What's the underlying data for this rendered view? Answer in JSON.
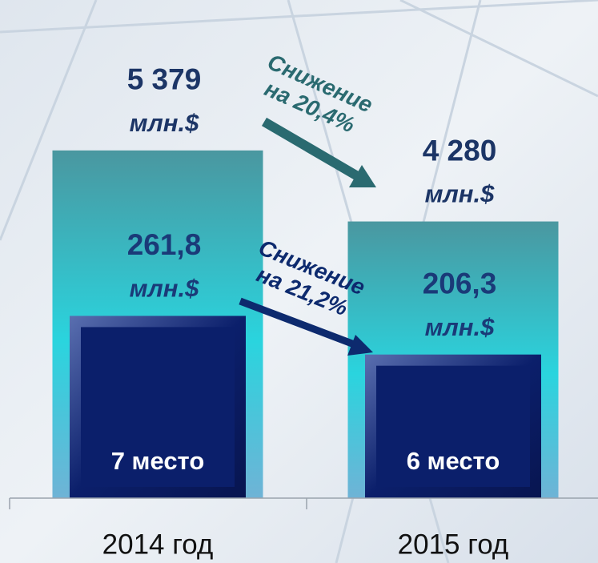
{
  "chart_data": {
    "type": "bar",
    "categories": [
      "2014 год",
      "2015 год"
    ],
    "unit": "млн.$",
    "ylim": [
      0,
      7000
    ],
    "y2lim": [
      0,
      650
    ],
    "series": [
      {
        "color": "#2ad0da",
        "values": [
          5379,
          4280
        ],
        "value_labels": [
          "5 379",
          "4 280"
        ]
      },
      {
        "color": "#0b1f6b",
        "axis": "y2",
        "values": [
          261.8,
          206.3
        ],
        "value_labels": [
          "261,8",
          "206,3"
        ],
        "rank_labels": [
          "7 место",
          "6 место"
        ]
      }
    ],
    "annotations": [
      {
        "lines": [
          "Снижение",
          "на 20,4%"
        ],
        "color": "#2a6a70"
      },
      {
        "lines": [
          "Снижение",
          "на 21,2%"
        ],
        "color": "#0d2a6e"
      }
    ]
  }
}
